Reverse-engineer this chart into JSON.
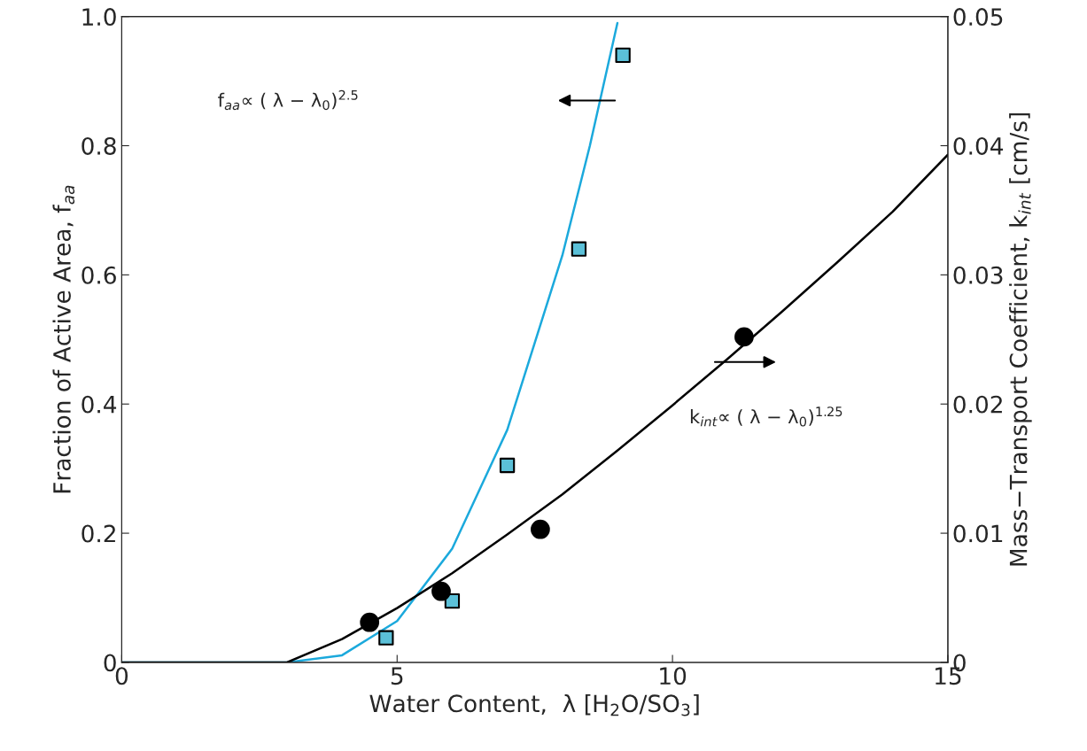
{
  "chart_data": {
    "type": "scatter",
    "xlabel": "Water Content,  λ [H$_{2}$O/SO$_{3}$]",
    "ylabel": "Fraction of Active Area, f$_{aa}$",
    "y2label": "Mass−Transport Coefficient, k$_{int}$ [cm/s]",
    "annotations": [
      "f$_{aa}$∝ ( λ − λ$_{0}$)$^{2.5}$",
      "k$_{int}$∝ ( λ − λ$_{0}$)$^{1.25}$"
    ],
    "xlim": [
      0,
      15
    ],
    "xticks": [
      0,
      5,
      10,
      15
    ],
    "ylim": [
      0,
      1.0
    ],
    "yticks": [
      0,
      0.2,
      0.4,
      0.6,
      0.8,
      {
        "value": 1,
        "label": "1.0"
      }
    ],
    "y2lim": [
      0,
      0.05
    ],
    "y2ticks": [
      0,
      0.01,
      0.02,
      0.03,
      0.04,
      0.05
    ],
    "grid": false,
    "legend": false,
    "series": [
      {
        "type": "line",
        "color": "#1ba9dc",
        "x": [
          0,
          3,
          4,
          5,
          6,
          7,
          8,
          8.5,
          9.0
        ],
        "values": [
          0,
          0,
          0.011,
          0.064,
          0.176,
          0.36,
          0.63,
          0.8,
          0.99
        ]
      },
      {
        "type": "line",
        "axis": "y2",
        "color": "#000000",
        "x": [
          0,
          3,
          4,
          5,
          6,
          7,
          8,
          9,
          10,
          11,
          12,
          13,
          14,
          15
        ],
        "values": [
          0,
          0,
          0.0018,
          0.0042,
          0.0069,
          0.0099,
          0.013,
          0.0164,
          0.0199,
          0.0235,
          0.0272,
          0.031,
          0.0349,
          0.0393
        ]
      },
      {
        "marker": "square",
        "color": "#5bc0d8",
        "x": [
          4.8,
          6.0,
          7.0,
          8.3,
          9.1
        ],
        "values": [
          0.038,
          0.095,
          0.305,
          0.64,
          0.94
        ]
      },
      {
        "marker": "circle",
        "axis": "y2",
        "color": "#000000",
        "x": [
          4.5,
          5.8,
          7.6,
          11.3
        ],
        "values": [
          0.0031,
          0.0055,
          0.0103,
          0.0252
        ]
      }
    ]
  }
}
